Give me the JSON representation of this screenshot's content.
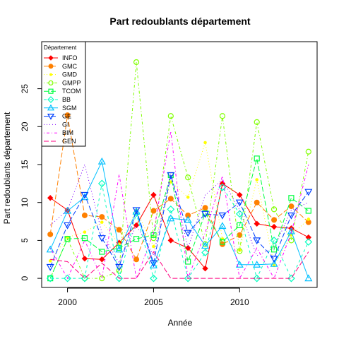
{
  "chart_data": {
    "type": "line",
    "title": "Part redoublants département",
    "xlabel": "Année",
    "ylabel": "Part redoublants département",
    "xlim": [
      1998.5,
      2014.5
    ],
    "ylim": [
      -1.2,
      31.2
    ],
    "x_ticks": [
      "2000",
      "2005",
      "2010"
    ],
    "y_ticks": [
      "0",
      "5",
      "10",
      "15",
      "20",
      "25"
    ],
    "legend": {
      "title": "Département",
      "position": "top-left"
    },
    "x": [
      1999,
      2000,
      2001,
      2002,
      2003,
      2004,
      2005,
      2006,
      2007,
      2008,
      2009,
      2010,
      2011,
      2012,
      2013,
      2014
    ],
    "series": [
      {
        "name": "INFO",
        "color": "#FF0000",
        "marker": "filled-diamond",
        "dash": "solid",
        "values": [
          10.6,
          9.0,
          2.6,
          2.5,
          4.7,
          7.0,
          11.0,
          5.0,
          4.0,
          1.3,
          12.5,
          11.0,
          7.2,
          6.8,
          6.6,
          5.4
        ]
      },
      {
        "name": "GMC",
        "color": "#FF8000",
        "marker": "filled-circle",
        "dash": "longdash",
        "values": [
          5.8,
          21.5,
          8.3,
          8.1,
          6.4,
          2.5,
          8.9,
          10.5,
          8.3,
          9.3,
          4.5,
          5.7,
          10.0,
          7.7,
          9.5,
          7.4
        ]
      },
      {
        "name": "GMD",
        "color": "#FFFF00",
        "marker": "filled-dot",
        "dash": "dotted",
        "values": [
          2.3,
          5.4,
          6.1,
          7.4,
          4.5,
          9.0,
          4.2,
          12.7,
          10.7,
          17.9,
          5.2,
          3.7,
          13.0,
          1.7,
          5.7,
          7.8
        ]
      },
      {
        "name": "GMPP",
        "color": "#80FF00",
        "marker": "open-circle",
        "dash": "dotdash",
        "values": [
          0.0,
          5.2,
          0.0,
          0.0,
          1.0,
          28.5,
          5.3,
          21.4,
          13.3,
          4.5,
          21.4,
          3.6,
          20.6,
          9.1,
          5.0,
          16.7
        ]
      },
      {
        "name": "TCOM",
        "color": "#00FF40",
        "marker": "open-square",
        "dash": "longdash",
        "values": [
          0.0,
          5.2,
          5.3,
          3.5,
          4.0,
          5.2,
          5.7,
          13.6,
          2.2,
          8.6,
          4.8,
          7.0,
          15.8,
          3.8,
          10.6,
          8.9
        ]
      },
      {
        "name": "BB",
        "color": "#00FFC0",
        "marker": "open-diamond",
        "dash": "dashed",
        "values": [
          0.0,
          0.0,
          0.0,
          12.5,
          0.0,
          8.6,
          0.0,
          9.1,
          0.0,
          3.4,
          12.0,
          8.5,
          0.0,
          5.0,
          0.0,
          4.8
        ]
      },
      {
        "name": "SGM",
        "color": "#00C0FF",
        "marker": "open-triangle-up",
        "dash": "solid",
        "values": [
          3.8,
          8.9,
          10.7,
          15.4,
          3.8,
          8.8,
          1.7,
          7.9,
          7.7,
          4.3,
          6.9,
          1.8,
          1.8,
          1.9,
          6.2,
          0.0
        ]
      },
      {
        "name": "GE",
        "color": "#0040FF",
        "marker": "open-triangle-down",
        "dash": "longdash",
        "values": [
          1.5,
          7.0,
          11.0,
          5.3,
          1.5,
          9.0,
          2.0,
          13.6,
          6.0,
          8.5,
          8.3,
          10.0,
          5.0,
          2.6,
          8.3,
          11.4
        ]
      },
      {
        "name": "GI",
        "color": "#8000FF",
        "marker": "none",
        "dash": "dotted",
        "values": [
          7.0,
          9.0,
          15.0,
          6.0,
          2.0,
          7.0,
          3.0,
          14.0,
          4.0,
          11.0,
          13.0,
          9.0,
          3.0,
          4.0,
          9.0,
          10.0
        ]
      },
      {
        "name": "BIM",
        "color": "#FF00FF",
        "marker": "none",
        "dash": "dotdash",
        "values": [
          4.0,
          0.0,
          5.0,
          0.0,
          13.7,
          0.0,
          6.0,
          19.4,
          0.0,
          6.0,
          13.5,
          0.0,
          4.0,
          0.0,
          6.0,
          15.0
        ]
      },
      {
        "name": "GEN",
        "color": "#FF0080",
        "marker": "none",
        "dash": "longdash",
        "values": [
          2.5,
          2.2,
          0.0,
          2.0,
          0.0,
          0.0,
          3.5,
          0.0,
          0.0,
          0.0,
          0.0,
          0.0,
          0.0,
          0.0,
          0.0,
          3.5
        ]
      }
    ]
  }
}
